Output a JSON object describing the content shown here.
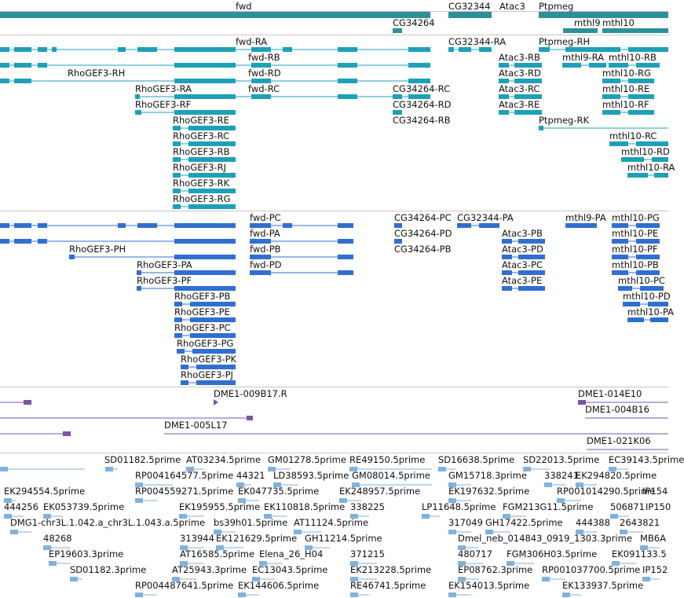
{
  "tracks": {
    "genes": {
      "color": "#2e8f99",
      "labels": [
        "fwd",
        "CG32344",
        "Atac3",
        "Ptpmeg",
        "CG34264",
        "mthl9",
        "mthl10"
      ]
    },
    "transcripts_a": {
      "color": "#1da0b8",
      "labels": [
        "fwd-RA",
        "CG32344-RA",
        "Ptpmeg-RH",
        "fwd-RB",
        "Atac3-RB",
        "mthl9-RA",
        "mthl10-RB",
        "RhoGEF3-RH",
        "fwd-RD",
        "Atac3-RD",
        "mthl10-RG",
        "RhoGEF3-RA",
        "fwd-RC",
        "CG34264-RC",
        "Atac3-RC",
        "mthl10-RE",
        "RhoGEF3-RF",
        "CG34264-RD",
        "Atac3-RE",
        "mthl10-RF",
        "RhoGEF3-RE",
        "CG34264-RB",
        "Ptpmeg-RK",
        "RhoGEF3-RC",
        "mthl10-RC",
        "RhoGEF3-RB",
        "mthl10-RD",
        "RhoGEF3-RJ",
        "mthl10-RA",
        "RhoGEF3-RK",
        "RhoGEF3-RG"
      ]
    },
    "transcripts_b": {
      "color": "#2f6fd0",
      "labels": [
        "fwd-PC",
        "CG34264-PC",
        "CG32344-PA",
        "mthl9-PA",
        "mthl10-PG",
        "fwd-PA",
        "CG34264-PD",
        "Atac3-PB",
        "mthl10-PE",
        "RhoGEF3-PH",
        "fwd-PB",
        "CG34264-PB",
        "Atac3-PD",
        "mthl10-PF",
        "RhoGEF3-PA",
        "fwd-PD",
        "Atac3-PC",
        "mthl10-PB",
        "RhoGEF3-PF",
        "Atac3-PE",
        "mthl10-PC",
        "RhoGEF3-PB",
        "mthl10-PD",
        "RhoGEF3-PE",
        "mthl10-PA",
        "RhoGEF3-PC",
        "RhoGEF3-PG",
        "RhoGEF3-PK",
        "RhoGEF3-PJ"
      ]
    },
    "clones": {
      "color": "#7a54a8",
      "labels": [
        "DME1-009B17.R",
        "DME1-014E10",
        "DME1-004B16",
        "DME1-005L17",
        "DME1-021K06"
      ]
    },
    "ests": {
      "color": "#7fb2dc",
      "labels": [
        "SD01182.5prime",
        "AT03234.5prime",
        "GM01278.5prime",
        "RE49150.5prime",
        "SD16638.5prime",
        "SD22013.5prime",
        "EC39143.5prime",
        "RP004164577.5prime",
        "44321",
        "LD38593.5prime",
        "GM08014.5prime",
        "GM15718.3prime",
        "338241",
        "EK294820.5prime",
        "EK294554.5prime",
        "RP004559271.5prime",
        "EK047735.5prime",
        "EK248957.5prime",
        "EK197632.5prime",
        "RP001014290.5prime",
        "IP154",
        "444256",
        "EK053739.5prime",
        "EK195955.5prime",
        "EK110818.5prime",
        "338225",
        "LP11648.5prime",
        "FGM213G11.5prime",
        "506871",
        "IP150",
        "DMG1-chr3L.1.042.a_chr3L.1.043.a.5prime",
        "bs39h01.5prime",
        "AT11124.5prime",
        "317049",
        "GH17422.5prime",
        "444388",
        "2643821",
        "48268",
        "313944",
        "EK121629.5prime",
        "GH11214.5prime",
        "Dmel_neb_014843_0919_1303.3prime",
        "MB6A",
        "EP19603.3prime",
        "AT16585.5prime",
        "Elena_26_H04",
        "371215",
        "480717",
        "FGM306H03.5prime",
        "EK091133.5",
        "SD01182.3prime",
        "AT25943.3prime",
        "EC13043.5prime",
        "EK213228.5prime",
        "EP08762.3prime",
        "RP001037700.5prime",
        "IP152",
        "RP004487641.5prime",
        "EK144606.5prime",
        "RE46741.5prime",
        "EK154013.5prime",
        "EK133937.5prime"
      ]
    }
  }
}
